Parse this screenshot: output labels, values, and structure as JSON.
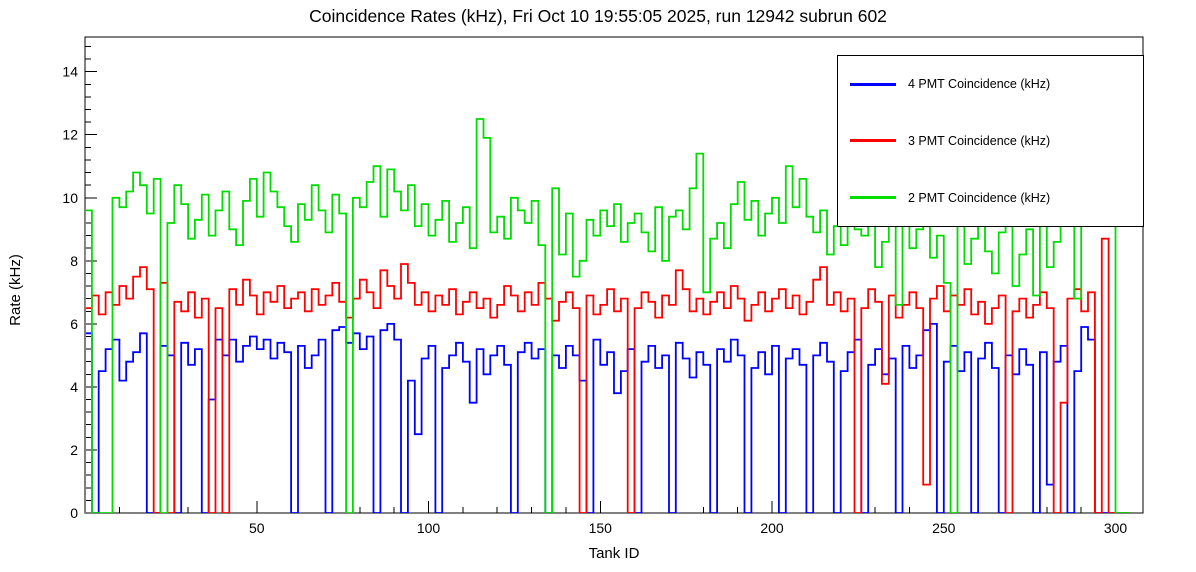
{
  "chart_data": {
    "type": "line",
    "style": "step-histogram",
    "title": "Coincidence Rates (kHz), Fri Oct 10 19:55:05 2025, run 12942 subrun 602",
    "xlabel": "Tank ID",
    "ylabel": "Rate (kHz)",
    "xlim": [
      0,
      308
    ],
    "ylim": [
      0,
      15.1
    ],
    "x_bin_start": 0,
    "x_bin_width": 2,
    "xticks_major": [
      50,
      100,
      150,
      200,
      250,
      300
    ],
    "xtick_minor_step": 10,
    "yticks_major": [
      0,
      2,
      4,
      6,
      8,
      10,
      12,
      14
    ],
    "ytick_minor_step": 0.4,
    "grid": false,
    "legend_position": "top-right",
    "frame_color": "#000000",
    "background_color": "#ffffff",
    "series": [
      {
        "name": "4 PMT Coincidence (kHz)",
        "color": "#0000ff",
        "values": [
          5.7,
          0.0,
          4.5,
          5.2,
          5.5,
          4.2,
          4.8,
          5.1,
          5.7,
          0.0,
          0.0,
          5.3,
          5.0,
          0.0,
          5.4,
          4.7,
          5.2,
          0.0,
          3.6,
          5.5,
          5.0,
          5.5,
          4.8,
          5.3,
          5.6,
          5.2,
          5.5,
          4.9,
          5.4,
          5.1,
          0.0,
          5.3,
          4.6,
          5.0,
          5.5,
          0.0,
          5.8,
          5.9,
          5.4,
          5.7,
          5.2,
          5.6,
          0.0,
          5.8,
          6.0,
          5.5,
          0.0,
          4.2,
          2.5,
          4.9,
          5.3,
          0.0,
          4.6,
          5.0,
          5.4,
          4.8,
          3.5,
          5.2,
          4.4,
          5.0,
          5.3,
          4.7,
          0.0,
          5.1,
          5.4,
          4.9,
          5.2,
          0.0,
          5.0,
          4.6,
          5.3,
          5.0,
          4.2,
          0.0,
          5.5,
          4.7,
          5.1,
          3.8,
          4.5,
          5.2,
          0.0,
          4.8,
          5.3,
          4.6,
          5.0,
          0.0,
          5.4,
          4.9,
          4.3,
          5.1,
          4.7,
          0.0,
          5.2,
          4.8,
          5.5,
          5.0,
          0.0,
          4.6,
          5.1,
          4.4,
          5.3,
          0.0,
          4.9,
          5.2,
          4.7,
          0.0,
          5.0,
          5.4,
          4.8,
          0.0,
          4.5,
          5.1,
          5.5,
          0.0,
          4.7,
          5.2,
          4.4,
          4.9,
          0.0,
          5.3,
          4.6,
          5.0,
          5.8,
          6.0,
          0.0,
          4.8,
          5.3,
          4.5,
          5.1,
          0.0,
          4.9,
          5.4,
          4.6,
          0.0,
          5.0,
          4.4,
          5.2,
          4.7,
          0.0,
          5.1,
          0.9,
          4.8,
          5.3,
          0.0,
          4.5,
          5.9,
          5.5,
          0.0,
          0.0,
          0.0,
          0.0,
          0.0
        ]
      },
      {
        "name": "3 PMT Coincidence (kHz)",
        "color": "#ff0000",
        "values": [
          6.5,
          6.9,
          6.3,
          7.0,
          6.6,
          7.2,
          6.8,
          7.5,
          7.8,
          7.1,
          0.0,
          7.3,
          0.0,
          6.7,
          6.4,
          7.0,
          6.2,
          6.8,
          0.0,
          6.5,
          0.0,
          7.1,
          6.6,
          7.4,
          6.9,
          6.3,
          7.0,
          6.7,
          7.2,
          6.5,
          6.8,
          7.0,
          6.4,
          7.1,
          6.6,
          6.9,
          7.3,
          6.7,
          6.2,
          6.8,
          7.4,
          7.0,
          6.5,
          7.7,
          7.2,
          6.8,
          7.9,
          7.3,
          6.6,
          7.0,
          6.4,
          6.9,
          6.6,
          7.1,
          6.3,
          6.7,
          7.0,
          6.5,
          6.8,
          6.2,
          6.6,
          7.2,
          6.9,
          6.4,
          7.0,
          6.6,
          7.3,
          6.8,
          6.1,
          6.7,
          7.0,
          6.5,
          0.0,
          6.9,
          6.3,
          6.6,
          7.1,
          6.4,
          6.8,
          0.0,
          6.5,
          7.0,
          6.7,
          6.2,
          6.9,
          6.6,
          7.7,
          7.1,
          6.4,
          6.8,
          6.3,
          6.7,
          7.0,
          6.5,
          7.2,
          6.8,
          6.1,
          6.6,
          7.0,
          6.4,
          6.8,
          7.1,
          6.5,
          6.9,
          6.3,
          6.7,
          7.4,
          7.8,
          6.6,
          7.0,
          6.4,
          6.8,
          0.0,
          6.5,
          7.1,
          6.7,
          4.1,
          6.9,
          6.2,
          6.6,
          7.0,
          6.5,
          0.9,
          6.8,
          7.2,
          6.4,
          6.9,
          6.6,
          7.1,
          6.3,
          6.7,
          6.0,
          6.5,
          6.9,
          0.0,
          6.4,
          6.8,
          6.2,
          6.6,
          7.0,
          6.5,
          0.0,
          3.5,
          6.8,
          7.1,
          6.4,
          7.0,
          0.0,
          8.7,
          0.0,
          0.0,
          0.0
        ]
      },
      {
        "name": "2 PMT Coincidence (kHz)",
        "color": "#00dd00",
        "values": [
          9.6,
          0.0,
          0.0,
          0.0,
          10.0,
          9.7,
          10.2,
          10.8,
          10.4,
          9.5,
          10.6,
          0.0,
          9.2,
          10.4,
          9.8,
          8.7,
          9.3,
          10.1,
          8.8,
          9.6,
          10.2,
          9.0,
          8.5,
          9.9,
          10.6,
          9.4,
          10.8,
          10.2,
          9.7,
          9.1,
          8.6,
          9.8,
          9.3,
          10.4,
          9.6,
          8.9,
          10.1,
          9.5,
          0.0,
          10.0,
          9.7,
          10.5,
          11.0,
          9.4,
          10.9,
          10.2,
          9.6,
          10.4,
          9.1,
          9.8,
          8.8,
          9.3,
          9.9,
          8.6,
          9.2,
          9.7,
          8.4,
          12.5,
          11.9,
          8.9,
          9.4,
          8.7,
          10.0,
          9.6,
          9.2,
          9.9,
          8.5,
          0.0,
          10.3,
          8.2,
          9.5,
          7.5,
          8.0,
          9.3,
          8.8,
          9.6,
          9.1,
          9.8,
          8.6,
          9.2,
          9.5,
          8.9,
          8.3,
          9.7,
          8.0,
          9.4,
          9.6,
          9.0,
          10.3,
          11.4,
          7.0,
          8.7,
          9.2,
          8.4,
          9.8,
          10.5,
          9.3,
          9.9,
          8.8,
          9.5,
          10.0,
          9.2,
          11.0,
          9.7,
          10.6,
          9.4,
          8.9,
          9.6,
          8.2,
          9.1,
          8.5,
          9.8,
          9.0,
          8.8,
          9.3,
          7.8,
          8.6,
          9.9,
          6.6,
          9.2,
          8.4,
          9.0,
          9.5,
          8.1,
          8.8,
          7.3,
          0.0,
          9.4,
          7.9,
          8.7,
          9.2,
          8.3,
          7.6,
          8.9,
          9.6,
          7.2,
          8.2,
          9.0,
          6.9,
          9.7,
          7.8,
          8.6,
          10.8,
          9.3,
          6.8,
          9.9,
          10.1,
          10.6,
          11.5,
          12.3,
          0.0,
          0.0
        ]
      }
    ]
  }
}
